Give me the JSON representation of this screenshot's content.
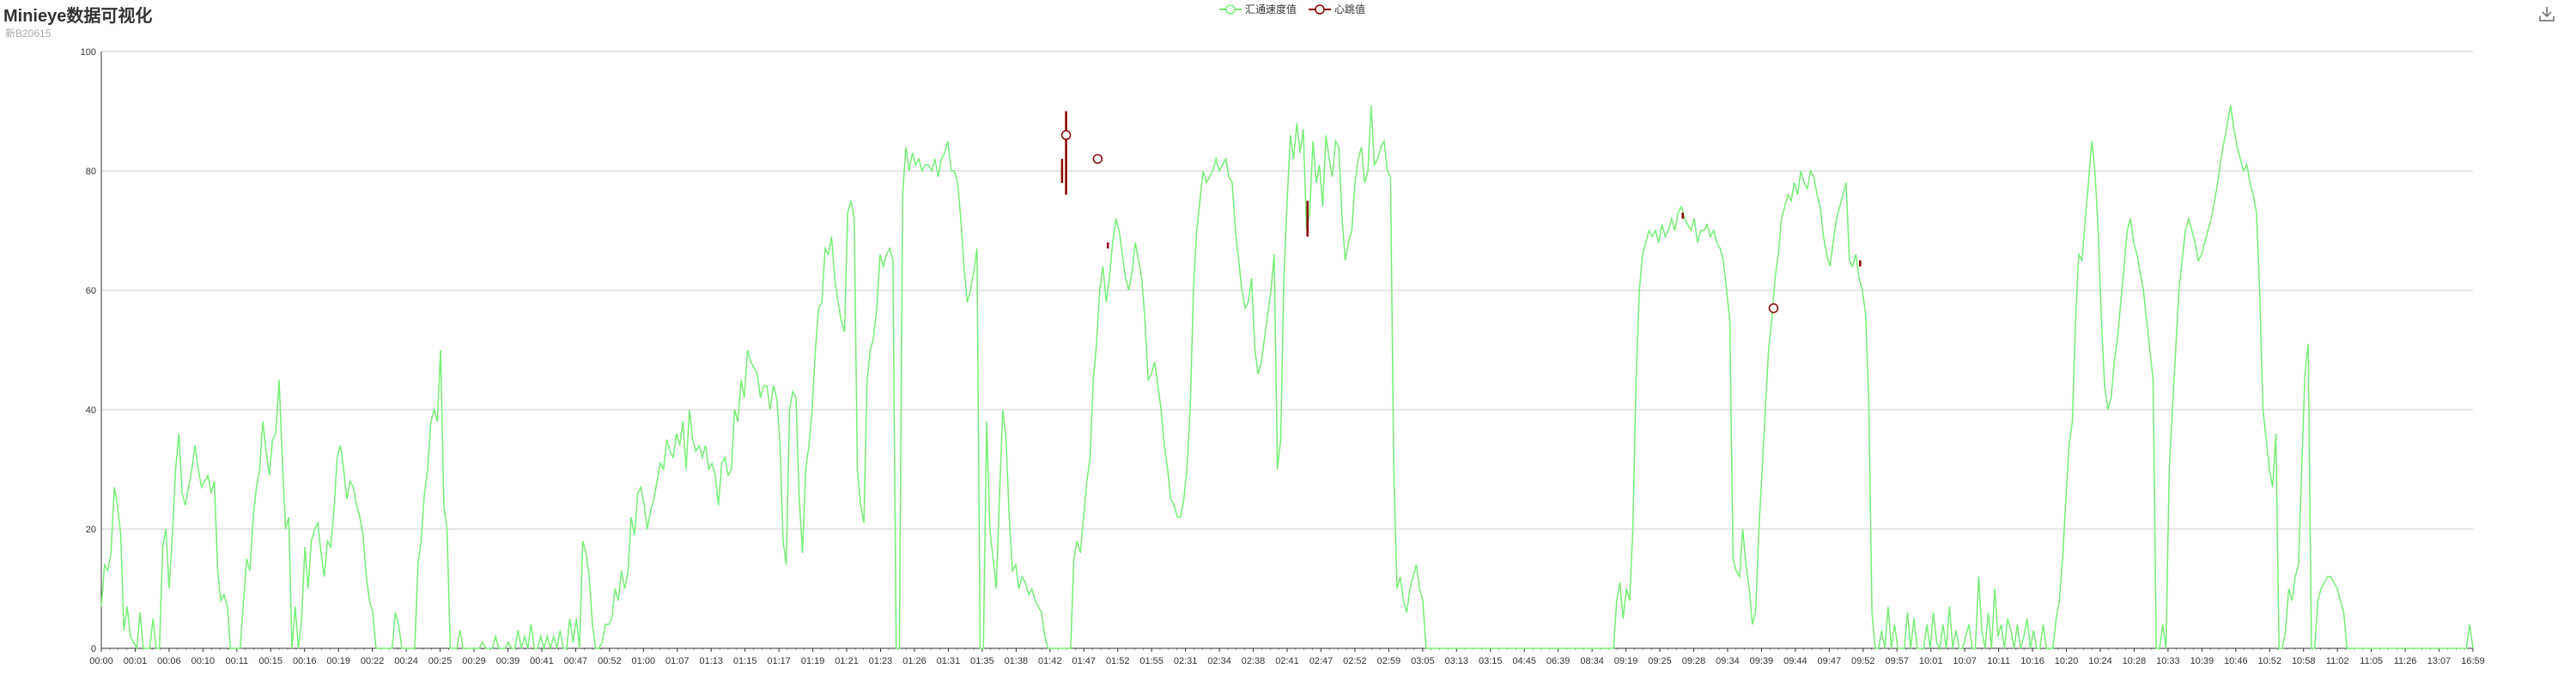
{
  "title": "Minieye数据可视化",
  "subtitle": "新B20615",
  "toolbox": {
    "save_icon": "download-icon"
  },
  "colors": {
    "speed": "#77ee77",
    "heartbeat": "#8b0000",
    "grid": "#cccccc",
    "axis": "#333333"
  },
  "chart_data": {
    "type": "line",
    "legend_position": "top-center",
    "grid": true,
    "ylim": [
      0,
      100
    ],
    "yticks": [
      0,
      20,
      40,
      60,
      80,
      100
    ],
    "xticks": [
      "00:00",
      "00:01",
      "00:06",
      "00:10",
      "00:11",
      "00:15",
      "00:16",
      "00:19",
      "00:22",
      "00:24",
      "00:25",
      "00:29",
      "00:39",
      "00:41",
      "00:47",
      "00:52",
      "01:00",
      "01:07",
      "01:13",
      "01:15",
      "01:17",
      "01:19",
      "01:21",
      "01:23",
      "01:26",
      "01:31",
      "01:35",
      "01:38",
      "01:42",
      "01:47",
      "01:52",
      "01:55",
      "02:31",
      "02:34",
      "02:38",
      "02:41",
      "02:47",
      "02:52",
      "02:59",
      "03:05",
      "03:13",
      "03:15",
      "04:45",
      "06:39",
      "08:34",
      "09:19",
      "09:25",
      "09:28",
      "09:34",
      "09:39",
      "09:44",
      "09:47",
      "09:52",
      "09:57",
      "10:01",
      "10:07",
      "10:11",
      "10:16",
      "10:20",
      "10:24",
      "10:28",
      "10:33",
      "10:39",
      "10:46",
      "10:52",
      "10:58",
      "11:02",
      "11:05",
      "11:26",
      "13:07",
      "16:59"
    ],
    "series": [
      {
        "name": "汇通速度值",
        "style": "line",
        "values": [
          7,
          14,
          13,
          16,
          27,
          24,
          19,
          3,
          7,
          2,
          1,
          0,
          6,
          0,
          0,
          0,
          5,
          0,
          0,
          17,
          20,
          10,
          19,
          30,
          36,
          26,
          24,
          27,
          30,
          34,
          30,
          27,
          28,
          29,
          26,
          28,
          13,
          8,
          9,
          7,
          0,
          0,
          0,
          0,
          8,
          15,
          13,
          22,
          27,
          30,
          38,
          33,
          29,
          35,
          36,
          45,
          32,
          20,
          22,
          0,
          7,
          0,
          5,
          17,
          10,
          18,
          20,
          21,
          16,
          12,
          18,
          17,
          23,
          32,
          34,
          30,
          25,
          28,
          27,
          24,
          22,
          19,
          12,
          8,
          6,
          0,
          0,
          0,
          0,
          0,
          0,
          6,
          4,
          0,
          0,
          0,
          0,
          0,
          14,
          18,
          26,
          30,
          38,
          40,
          38,
          50,
          24,
          20,
          0,
          0,
          0,
          3,
          0,
          0,
          0,
          0,
          0,
          0,
          1,
          0,
          0,
          0,
          2,
          0,
          0,
          0,
          1,
          0,
          0,
          3,
          0,
          2,
          0,
          4,
          0,
          0,
          2,
          0,
          2,
          0,
          2,
          0,
          3,
          0,
          0,
          5,
          1,
          5,
          0,
          18,
          16,
          12,
          4,
          0,
          0,
          1,
          4,
          4,
          5,
          10,
          8,
          13,
          10,
          13,
          22,
          19,
          26,
          27,
          24,
          20,
          23,
          25,
          28,
          31,
          30,
          35,
          33,
          32,
          36,
          34,
          38,
          30,
          40,
          35,
          33,
          34,
          32,
          34,
          30,
          31,
          29,
          24,
          31,
          32,
          29,
          30,
          40,
          38,
          45,
          42,
          50,
          48,
          47,
          46,
          42,
          44,
          44,
          40,
          44,
          42,
          35,
          18,
          14,
          40,
          43,
          42,
          25,
          16,
          30,
          34,
          40,
          50,
          57,
          58,
          67,
          66,
          69,
          62,
          58,
          55,
          53,
          73,
          75,
          72,
          30,
          24,
          21,
          45,
          50,
          52,
          57,
          66,
          64,
          66,
          67,
          65,
          0,
          0,
          76,
          84,
          80,
          83,
          81,
          82,
          80,
          81,
          81,
          80,
          82,
          79,
          82,
          83,
          85,
          80,
          80,
          78,
          72,
          64,
          58,
          60,
          63,
          67,
          0,
          0,
          38,
          20,
          15,
          10,
          26,
          40,
          35,
          22,
          13,
          14,
          10,
          12,
          11,
          9,
          10,
          8,
          7,
          6,
          2,
          0,
          0,
          0,
          0,
          0,
          0,
          0,
          0,
          15,
          18,
          16,
          22,
          28,
          32,
          45,
          51,
          60,
          64,
          58,
          62,
          68,
          72,
          70,
          66,
          62,
          60,
          63,
          68,
          65,
          62,
          55,
          45,
          46,
          48,
          44,
          40,
          34,
          30,
          25,
          24,
          22,
          22,
          25,
          30,
          40,
          60,
          70,
          75,
          80,
          78,
          79,
          80,
          82,
          80,
          81,
          82,
          79,
          78,
          70,
          65,
          60,
          57,
          58,
          62,
          50,
          46,
          48,
          52,
          56,
          60,
          66,
          30,
          35,
          62,
          75,
          86,
          82,
          88,
          83,
          87,
          70,
          73,
          85,
          78,
          81,
          74,
          86,
          82,
          79,
          85,
          84,
          72,
          65,
          68,
          70,
          78,
          82,
          84,
          78,
          80,
          91,
          81,
          82,
          84,
          85,
          80,
          79,
          30,
          10,
          12,
          8,
          6,
          10,
          12,
          14,
          10,
          8,
          0,
          0,
          0,
          0,
          0,
          0,
          0,
          0,
          0,
          0,
          0,
          0,
          0,
          0,
          0,
          0,
          0,
          0,
          0,
          0,
          0,
          0,
          0,
          0,
          0,
          0,
          0,
          0,
          0,
          0,
          0,
          0,
          0,
          0,
          0,
          0,
          0,
          0,
          0,
          0,
          0,
          0,
          0,
          0,
          0,
          0,
          0,
          0,
          0,
          0,
          0,
          0,
          0,
          0,
          0,
          0,
          0,
          0,
          0,
          8,
          11,
          5,
          10,
          8,
          20,
          45,
          60,
          66,
          68,
          70,
          69,
          70,
          68,
          71,
          69,
          70,
          72,
          70,
          73,
          74,
          72,
          71,
          70,
          72,
          68,
          70,
          70,
          71,
          69,
          70,
          68,
          67,
          65,
          60,
          55,
          15,
          13,
          12,
          20,
          14,
          10,
          4,
          6,
          20,
          30,
          40,
          50,
          55,
          62,
          66,
          72,
          74,
          76,
          75,
          78,
          76,
          80,
          78,
          77,
          80,
          79,
          76,
          74,
          69,
          66,
          64,
          68,
          72,
          74,
          76,
          78,
          65,
          64,
          66,
          62,
          60,
          56,
          42,
          6,
          0,
          0,
          3,
          0,
          7,
          0,
          4,
          0,
          0,
          0,
          6,
          0,
          5,
          0,
          0,
          0,
          4,
          0,
          6,
          1,
          0,
          4,
          0,
          7,
          0,
          3,
          0,
          0,
          2,
          4,
          0,
          0,
          12,
          3,
          0,
          6,
          0,
          10,
          2,
          4,
          0,
          5,
          3,
          0,
          4,
          0,
          2,
          5,
          0,
          3,
          0,
          0,
          4,
          0,
          0,
          0,
          5,
          8,
          15,
          25,
          34,
          38,
          55,
          66,
          65,
          72,
          78,
          85,
          80,
          70,
          55,
          44,
          40,
          42,
          48,
          52,
          58,
          64,
          70,
          72,
          68,
          66,
          63,
          60,
          55,
          50,
          45,
          0,
          0,
          4,
          0,
          30,
          40,
          50,
          60,
          65,
          70,
          72,
          70,
          68,
          65,
          66,
          68,
          70,
          72,
          75,
          78,
          82,
          85,
          88,
          91,
          87,
          84,
          82,
          80,
          81,
          78,
          76,
          73,
          60,
          40,
          35,
          30,
          27,
          36,
          0,
          0,
          3,
          10,
          8,
          12,
          14,
          30,
          46,
          51,
          0,
          0,
          8,
          10,
          11,
          12,
          12,
          11,
          10,
          8,
          6,
          0,
          0,
          0,
          0,
          0,
          0,
          0,
          0,
          0,
          0,
          0,
          0,
          0,
          0,
          0,
          0,
          0,
          0,
          0,
          0,
          0,
          0,
          0,
          0,
          0,
          0,
          0,
          0,
          0,
          0,
          0,
          0,
          0,
          0,
          0,
          0,
          0,
          0,
          4,
          0
        ]
      },
      {
        "name": "心跳值",
        "style": "markers",
        "points": [
          {
            "x": 0.4068,
            "y": 86
          },
          {
            "x": 0.4201,
            "y": 82
          },
          {
            "x": 0.7051,
            "y": 57
          }
        ],
        "spikes": [
          {
            "x": 0.4068,
            "from": 76,
            "to": 90
          },
          {
            "x": 0.4051,
            "from": 78,
            "to": 82
          },
          {
            "x": 0.4244,
            "from": 67,
            "to": 68
          },
          {
            "x": 0.5086,
            "from": 69,
            "to": 75
          },
          {
            "x": 0.6668,
            "from": 72,
            "to": 73
          },
          {
            "x": 0.7416,
            "from": 64,
            "to": 65
          }
        ]
      }
    ]
  }
}
